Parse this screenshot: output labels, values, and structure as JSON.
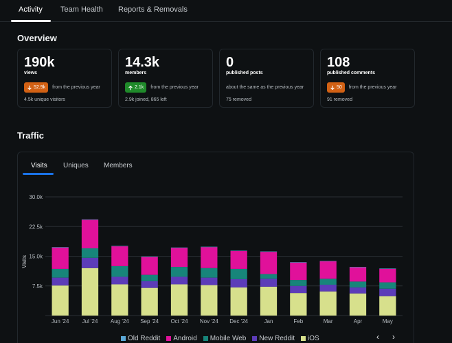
{
  "tabs": [
    "Activity",
    "Team Health",
    "Reports & Removals"
  ],
  "overview": {
    "title": "Overview",
    "cards": [
      {
        "value": "190k",
        "label": "views",
        "badge": "52.9k",
        "direction": "down",
        "change_text": "from the previous year",
        "sub": "4.5k unique visitors"
      },
      {
        "value": "14.3k",
        "label": "members",
        "badge": "2.1k",
        "direction": "up",
        "change_text": "from the previous year",
        "sub": "2.9k joined, 865 left"
      },
      {
        "value": "0",
        "label": "published posts",
        "badge": "",
        "direction": "none",
        "change_text": "about the same as the previous year",
        "sub": "75 removed"
      },
      {
        "value": "108",
        "label": "published comments",
        "badge": "50",
        "direction": "down",
        "change_text": "from the previous year",
        "sub": "91 removed"
      }
    ]
  },
  "traffic": {
    "title": "Traffic",
    "tabs": [
      "Visits",
      "Uniques",
      "Members"
    ],
    "prev_icon": "chevron-left-icon",
    "next_icon": "chevron-right-icon"
  },
  "colors": {
    "old_reddit": "#5aa7d6",
    "android": "#e0119a",
    "mobile_web": "#17857a",
    "new_reddit": "#5c3cb8",
    "ios": "#d7e08c",
    "badge_down": "#d26114",
    "badge_up": "#1f8a2a",
    "accent": "#1a73e8"
  },
  "chart_data": {
    "type": "bar",
    "stacked": true,
    "ylabel": "Visits",
    "xlabel": "",
    "ylim": [
      0,
      30000
    ],
    "yticks": [
      7500,
      15000,
      22500,
      30000
    ],
    "ytick_labels": [
      "7.5k",
      "15.0k",
      "22.5k",
      "30.0k"
    ],
    "categories": [
      "Jun '24",
      "Jul '24",
      "Aug '24",
      "Sep '24",
      "Oct '24",
      "Nov '24",
      "Dec '24",
      "Jan",
      "Feb",
      "Mar",
      "Apr",
      "May"
    ],
    "series": [
      {
        "name": "iOS",
        "color": "#d7e08c",
        "values": [
          7600,
          12000,
          7900,
          7000,
          7900,
          7700,
          7100,
          7300,
          5700,
          6100,
          5600,
          4900
        ]
      },
      {
        "name": "New Reddit",
        "color": "#5c3cb8",
        "values": [
          2000,
          2600,
          1900,
          1700,
          1900,
          1900,
          2100,
          2000,
          1800,
          1700,
          1500,
          1900
        ]
      },
      {
        "name": "Mobile Web",
        "color": "#17857a",
        "values": [
          2200,
          2400,
          2700,
          1600,
          2500,
          2400,
          2600,
          1200,
          1500,
          1500,
          1500,
          1600
        ]
      },
      {
        "name": "Android",
        "color": "#e0119a",
        "values": [
          5400,
          7200,
          5000,
          4500,
          4800,
          5300,
          4500,
          5600,
          4400,
          4400,
          3600,
          3400
        ]
      },
      {
        "name": "Old Reddit",
        "color": "#5aa7d6",
        "values": [
          100,
          100,
          100,
          100,
          100,
          100,
          100,
          100,
          100,
          100,
          100,
          100
        ]
      }
    ],
    "legend": [
      "Old Reddit",
      "Android",
      "Mobile Web",
      "New Reddit",
      "iOS"
    ],
    "legend_colors": [
      "#5aa7d6",
      "#e0119a",
      "#17857a",
      "#5c3cb8",
      "#d7e08c"
    ],
    "legend_position": "bottom"
  }
}
